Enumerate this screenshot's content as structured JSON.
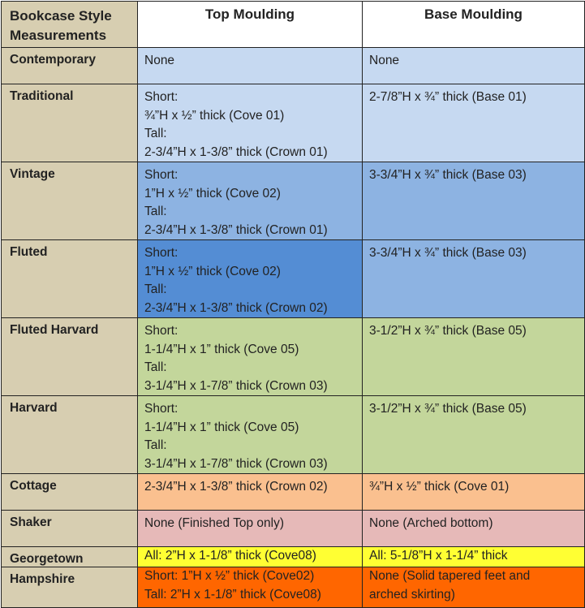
{
  "header": {
    "style_col": "Bookcase Style Measurements",
    "top_col": "Top Moulding",
    "base_col": "Base Moulding"
  },
  "rows": [
    {
      "style": "Contemporary",
      "top": [
        "None"
      ],
      "base": [
        "None"
      ],
      "color": "#c6d9f1",
      "top_color": "#c6d9f1",
      "base_color": "#c6d9f1"
    },
    {
      "style": "Traditional",
      "top": [
        "Short:",
        "¾”H x ½” thick (Cove 01)",
        "Tall:",
        "2-3/4”H x 1-3/8” thick (Crown 01)"
      ],
      "base": [
        "2-7/8”H x ¾” thick (Base 01)"
      ],
      "top_color": "#c6d9f1",
      "base_color": "#c6d9f1"
    },
    {
      "style": "Vintage",
      "top": [
        "Short:",
        "1”H x ½” thick (Cove 02)",
        "Tall:",
        "2-3/4”H x 1-3/8” thick (Crown 01)"
      ],
      "base": [
        "3-3/4”H x ¾” thick (Base 03)"
      ],
      "top_color": "#8db3e2",
      "base_color": "#8db3e2"
    },
    {
      "style": "Fluted",
      "top": [
        "Short:",
        "1”H x ½” thick (Cove 02)",
        "Tall:",
        "2-3/4”H x 1-3/8” thick (Crown 02)"
      ],
      "base": [
        "3-3/4”H x ¾” thick (Base 03)"
      ],
      "top_color": "#548dd4",
      "base_color": "#8db3e2"
    },
    {
      "style": "Fluted Harvard",
      "top": [
        "Short:",
        "1-1/4”H x 1” thick (Cove 05)",
        "Tall:",
        "3-1/4”H x 1-7/8” thick (Crown 03)"
      ],
      "base": [
        "3-1/2”H x ¾” thick (Base 05)"
      ],
      "top_color": "#c3d69b",
      "base_color": "#c3d69b"
    },
    {
      "style": "Harvard",
      "top": [
        "Short:",
        "1-1/4”H x 1” thick (Cove 05)",
        "Tall:",
        "3-1/4”H x 1-7/8” thick (Crown 03)"
      ],
      "base": [
        "3-1/2”H x ¾” thick (Base 05)"
      ],
      "top_color": "#c3d69b",
      "base_color": "#c3d69b"
    },
    {
      "style": "Cottage",
      "top": [
        "2-3/4”H x 1-3/8” thick (Crown 02)"
      ],
      "base": [
        "¾”H x ½” thick (Cove 01)"
      ],
      "top_color": "#fac08f",
      "base_color": "#fac08f"
    },
    {
      "style": "Shaker",
      "top": [
        "None (Finished Top only)"
      ],
      "base": [
        "None (Arched bottom)"
      ],
      "top_color": "#e6b9b8",
      "base_color": "#e6b9b8"
    },
    {
      "style": "Georgetown",
      "top": [
        "All: 2”H x 1-1/8” thick (Cove08)"
      ],
      "base": [
        "All: 5-1/8”H x 1-1/4” thick"
      ],
      "top_color": "#ffff33",
      "base_color": "#ffff33"
    },
    {
      "style": "Hampshire",
      "top": [
        "Short: 1”H x ½” thick (Cove02)",
        "Tall: 2”H x 1-1/8” thick (Cove08)"
      ],
      "base": [
        "None (Solid tapered feet and",
        "arched skirting)"
      ],
      "top_color": "#ff6600",
      "base_color": "#ff6600"
    }
  ]
}
